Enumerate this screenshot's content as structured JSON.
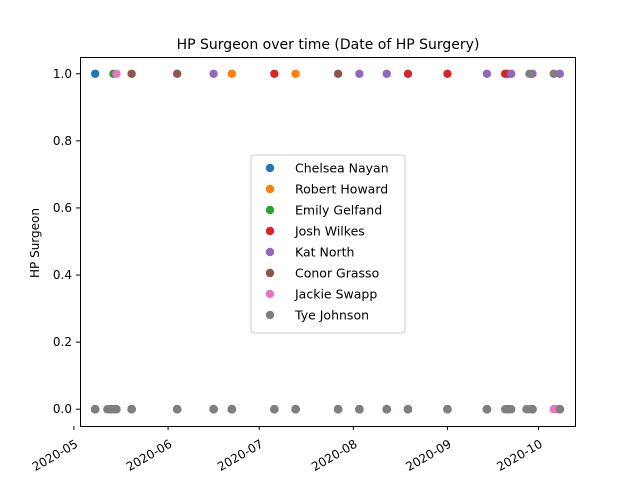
{
  "chart_data": {
    "type": "scatter",
    "title": "HP Surgeon over time (Date of HP Surgery)",
    "xlabel": "",
    "ylabel": "HP Surgeon",
    "x_axis": "date",
    "xlim": [
      "2020-05-03",
      "2020-10-13"
    ],
    "ylim": [
      -0.05,
      1.05
    ],
    "x_ticks": [
      "2020-05-01",
      "2020-06-01",
      "2020-07-01",
      "2020-08-01",
      "2020-09-01",
      "2020-10-01"
    ],
    "x_tick_labels": [
      "2020-05",
      "2020-06",
      "2020-07",
      "2020-08",
      "2020-09",
      "2020-10"
    ],
    "y_ticks": [
      0.0,
      0.2,
      0.4,
      0.6,
      0.8,
      1.0
    ],
    "y_tick_labels": [
      "0.0",
      "0.2",
      "0.4",
      "0.6",
      "0.8",
      "1.0"
    ],
    "grid": false,
    "legend_position": "center",
    "series": [
      {
        "name": "Chelsea Nayan",
        "color": "#1f77b4",
        "points": [
          {
            "x": "2020-05-08",
            "y": 1
          },
          {
            "x": "2020-05-13",
            "y": 0
          },
          {
            "x": "2020-05-14",
            "y": 0
          },
          {
            "x": "2020-05-15",
            "y": 0
          },
          {
            "x": "2020-05-20",
            "y": 0
          },
          {
            "x": "2020-06-04",
            "y": 0
          },
          {
            "x": "2020-06-16",
            "y": 0
          },
          {
            "x": "2020-06-22",
            "y": 0
          },
          {
            "x": "2020-07-06",
            "y": 0
          },
          {
            "x": "2020-07-13",
            "y": 0
          },
          {
            "x": "2020-07-27",
            "y": 0
          },
          {
            "x": "2020-08-03",
            "y": 0
          },
          {
            "x": "2020-08-12",
            "y": 0
          },
          {
            "x": "2020-08-19",
            "y": 0
          },
          {
            "x": "2020-09-01",
            "y": 0
          },
          {
            "x": "2020-09-14",
            "y": 0
          },
          {
            "x": "2020-09-21",
            "y": 0
          },
          {
            "x": "2020-09-29",
            "y": 0
          },
          {
            "x": "2020-10-08",
            "y": 0
          }
        ]
      },
      {
        "name": "Robert Howard",
        "color": "#ff7f0e",
        "points": [
          {
            "x": "2020-06-22",
            "y": 1
          },
          {
            "x": "2020-07-13",
            "y": 1
          },
          {
            "x": "2020-05-08",
            "y": 0
          },
          {
            "x": "2020-05-13",
            "y": 0
          },
          {
            "x": "2020-05-20",
            "y": 0
          },
          {
            "x": "2020-06-04",
            "y": 0
          },
          {
            "x": "2020-06-16",
            "y": 0
          },
          {
            "x": "2020-07-06",
            "y": 0
          },
          {
            "x": "2020-07-27",
            "y": 0
          },
          {
            "x": "2020-08-03",
            "y": 0
          },
          {
            "x": "2020-08-12",
            "y": 0
          },
          {
            "x": "2020-08-19",
            "y": 0
          },
          {
            "x": "2020-09-01",
            "y": 0
          },
          {
            "x": "2020-09-14",
            "y": 0
          },
          {
            "x": "2020-09-21",
            "y": 0
          },
          {
            "x": "2020-09-29",
            "y": 0
          },
          {
            "x": "2020-10-08",
            "y": 0
          }
        ]
      },
      {
        "name": "Emily Gelfand",
        "color": "#2ca02c",
        "points": [
          {
            "x": "2020-05-14",
            "y": 1
          },
          {
            "x": "2020-05-08",
            "y": 0
          },
          {
            "x": "2020-05-13",
            "y": 0
          },
          {
            "x": "2020-05-20",
            "y": 0
          },
          {
            "x": "2020-06-04",
            "y": 0
          },
          {
            "x": "2020-06-16",
            "y": 0
          },
          {
            "x": "2020-06-22",
            "y": 0
          },
          {
            "x": "2020-07-06",
            "y": 0
          },
          {
            "x": "2020-07-13",
            "y": 0
          },
          {
            "x": "2020-07-27",
            "y": 0
          },
          {
            "x": "2020-08-03",
            "y": 0
          },
          {
            "x": "2020-08-12",
            "y": 0
          },
          {
            "x": "2020-08-19",
            "y": 0
          },
          {
            "x": "2020-09-01",
            "y": 0
          },
          {
            "x": "2020-09-14",
            "y": 0
          },
          {
            "x": "2020-09-21",
            "y": 0
          },
          {
            "x": "2020-09-29",
            "y": 0
          },
          {
            "x": "2020-10-08",
            "y": 0
          }
        ]
      },
      {
        "name": "Josh Wilkes",
        "color": "#d62728",
        "points": [
          {
            "x": "2020-07-06",
            "y": 1
          },
          {
            "x": "2020-08-19",
            "y": 1
          },
          {
            "x": "2020-09-01",
            "y": 1
          },
          {
            "x": "2020-09-20",
            "y": 1
          },
          {
            "x": "2020-09-21",
            "y": 1
          },
          {
            "x": "2020-05-08",
            "y": 0
          },
          {
            "x": "2020-05-13",
            "y": 0
          },
          {
            "x": "2020-05-20",
            "y": 0
          },
          {
            "x": "2020-06-04",
            "y": 0
          },
          {
            "x": "2020-06-16",
            "y": 0
          },
          {
            "x": "2020-06-22",
            "y": 0
          },
          {
            "x": "2020-07-13",
            "y": 0
          },
          {
            "x": "2020-07-27",
            "y": 0
          },
          {
            "x": "2020-08-03",
            "y": 0
          },
          {
            "x": "2020-08-12",
            "y": 0
          },
          {
            "x": "2020-09-14",
            "y": 0
          },
          {
            "x": "2020-09-29",
            "y": 0
          },
          {
            "x": "2020-10-08",
            "y": 0
          }
        ]
      },
      {
        "name": "Kat North",
        "color": "#9467bd",
        "points": [
          {
            "x": "2020-06-16",
            "y": 1
          },
          {
            "x": "2020-08-03",
            "y": 1
          },
          {
            "x": "2020-08-12",
            "y": 1
          },
          {
            "x": "2020-09-14",
            "y": 1
          },
          {
            "x": "2020-09-22",
            "y": 1
          },
          {
            "x": "2020-09-29",
            "y": 1
          },
          {
            "x": "2020-10-08",
            "y": 1
          },
          {
            "x": "2020-05-08",
            "y": 0
          },
          {
            "x": "2020-05-13",
            "y": 0
          },
          {
            "x": "2020-05-20",
            "y": 0
          },
          {
            "x": "2020-06-04",
            "y": 0
          },
          {
            "x": "2020-06-22",
            "y": 0
          },
          {
            "x": "2020-07-06",
            "y": 0
          },
          {
            "x": "2020-07-13",
            "y": 0
          },
          {
            "x": "2020-07-27",
            "y": 0
          },
          {
            "x": "2020-08-19",
            "y": 0
          },
          {
            "x": "2020-09-01",
            "y": 0
          },
          {
            "x": "2020-09-21",
            "y": 0
          }
        ]
      },
      {
        "name": "Conor Grasso",
        "color": "#8c564b",
        "points": [
          {
            "x": "2020-05-20",
            "y": 1
          },
          {
            "x": "2020-06-04",
            "y": 1
          },
          {
            "x": "2020-07-27",
            "y": 1
          },
          {
            "x": "2020-05-08",
            "y": 0
          },
          {
            "x": "2020-05-13",
            "y": 0
          },
          {
            "x": "2020-06-16",
            "y": 0
          },
          {
            "x": "2020-06-22",
            "y": 0
          },
          {
            "x": "2020-07-06",
            "y": 0
          },
          {
            "x": "2020-07-13",
            "y": 0
          },
          {
            "x": "2020-08-03",
            "y": 0
          },
          {
            "x": "2020-08-12",
            "y": 0
          },
          {
            "x": "2020-08-19",
            "y": 0
          },
          {
            "x": "2020-09-01",
            "y": 0
          },
          {
            "x": "2020-09-14",
            "y": 0
          },
          {
            "x": "2020-09-21",
            "y": 0
          },
          {
            "x": "2020-09-29",
            "y": 0
          },
          {
            "x": "2020-10-08",
            "y": 0
          }
        ]
      },
      {
        "name": "Jackie Swapp",
        "color": "#e377c2",
        "points": [
          {
            "x": "2020-05-15",
            "y": 1
          },
          {
            "x": "2020-10-06",
            "y": 0
          },
          {
            "x": "2020-10-07",
            "y": 0
          }
        ]
      },
      {
        "name": "Tye Johnson",
        "color": "#7f7f7f",
        "points": [
          {
            "x": "2020-09-28",
            "y": 1
          },
          {
            "x": "2020-10-06",
            "y": 1
          },
          {
            "x": "2020-05-08",
            "y": 0
          },
          {
            "x": "2020-05-12",
            "y": 0
          },
          {
            "x": "2020-05-13",
            "y": 0
          },
          {
            "x": "2020-05-14",
            "y": 0
          },
          {
            "x": "2020-05-15",
            "y": 0
          },
          {
            "x": "2020-05-20",
            "y": 0
          },
          {
            "x": "2020-06-04",
            "y": 0
          },
          {
            "x": "2020-06-16",
            "y": 0
          },
          {
            "x": "2020-06-22",
            "y": 0
          },
          {
            "x": "2020-07-06",
            "y": 0
          },
          {
            "x": "2020-07-13",
            "y": 0
          },
          {
            "x": "2020-07-27",
            "y": 0
          },
          {
            "x": "2020-08-03",
            "y": 0
          },
          {
            "x": "2020-08-12",
            "y": 0
          },
          {
            "x": "2020-08-19",
            "y": 0
          },
          {
            "x": "2020-09-01",
            "y": 0
          },
          {
            "x": "2020-09-14",
            "y": 0
          },
          {
            "x": "2020-09-20",
            "y": 0
          },
          {
            "x": "2020-09-21",
            "y": 0
          },
          {
            "x": "2020-09-22",
            "y": 0
          },
          {
            "x": "2020-09-27",
            "y": 0
          },
          {
            "x": "2020-09-28",
            "y": 0
          },
          {
            "x": "2020-09-29",
            "y": 0
          },
          {
            "x": "2020-10-08",
            "y": 0
          }
        ]
      }
    ]
  }
}
